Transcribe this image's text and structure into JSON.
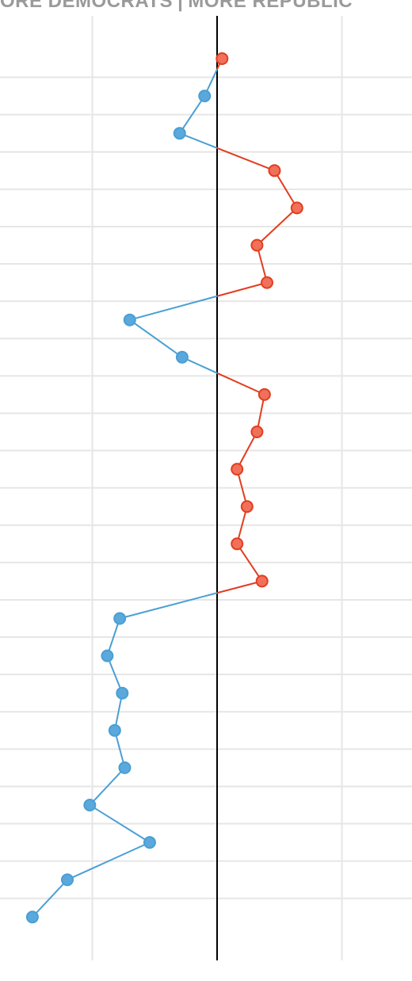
{
  "chart_data": {
    "type": "line",
    "orientation": "vertical",
    "header": {
      "left": "ORE DEMOCRATS",
      "separator": "|",
      "right": "MORE REPUBLIC"
    },
    "x_center": 0,
    "xlim": [
      -100,
      100
    ],
    "gridlines_x": [
      -50,
      50
    ],
    "grid": true,
    "colors": {
      "positive": "#e23d1f",
      "positive_fill": "#f0705a",
      "negative": "#4a9fd4",
      "negative_fill": "#5aa8dc",
      "center_line": "#000000",
      "grid": "#e6e6e6"
    },
    "series": [
      {
        "values": [
          2,
          -5,
          -15,
          23,
          32,
          16,
          20,
          -35,
          -14,
          19,
          16,
          8,
          12,
          8,
          18,
          -39,
          -44,
          -38,
          -41,
          -37,
          -51,
          -27,
          -60,
          -74
        ]
      }
    ]
  }
}
